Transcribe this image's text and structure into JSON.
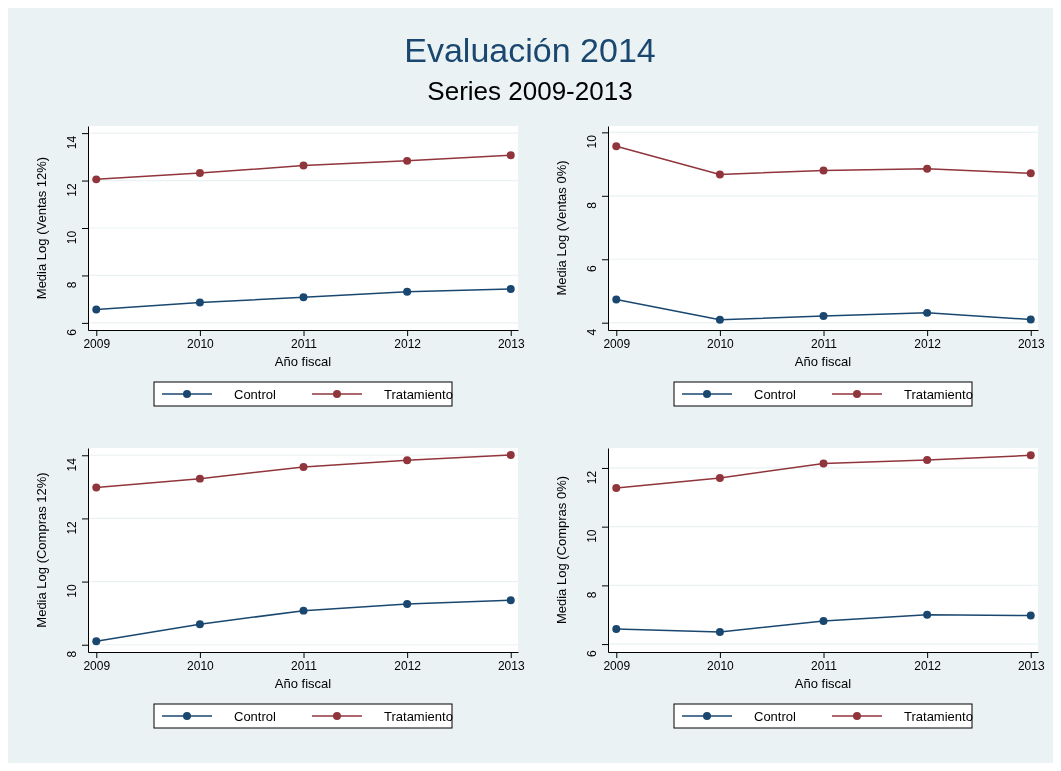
{
  "chart_data": [
    {
      "type": "line",
      "title": "Evaluación 2014",
      "subtitle": "Series 2009-2013",
      "xlabel": "Año fiscal",
      "ylabel": "Media Log (Ventas 12%)",
      "x": [
        2009,
        2010,
        2011,
        2012,
        2013
      ],
      "xlim": [
        2008.92,
        2013.07
      ],
      "xticks": [
        2009,
        2010,
        2011,
        2012,
        2013
      ],
      "ylim": [
        5.7,
        14.3
      ],
      "yticks": [
        6,
        8,
        10,
        12,
        14
      ],
      "grid": "y",
      "legend": "bottom",
      "marker": "circle",
      "series": [
        {
          "name": "Control",
          "color": "#1a476f",
          "values": [
            6.56,
            6.86,
            7.08,
            7.31,
            7.43
          ]
        },
        {
          "name": "Tratamiento",
          "color": "#90353b",
          "values": [
            12.05,
            12.32,
            12.63,
            12.83,
            13.07
          ]
        }
      ]
    },
    {
      "type": "line",
      "xlabel": "Año fiscal",
      "ylabel": "Media Log (Ventas 0%)",
      "x": [
        2009,
        2010,
        2011,
        2012,
        2013
      ],
      "xlim": [
        2008.92,
        2013.07
      ],
      "xticks": [
        2009,
        2010,
        2011,
        2012,
        2013
      ],
      "ylim": [
        3.77,
        10.2
      ],
      "yticks": [
        4,
        6,
        8,
        10
      ],
      "grid": "y",
      "legend": "bottom",
      "marker": "circle",
      "series": [
        {
          "name": "Control",
          "color": "#1a476f",
          "values": [
            4.73,
            4.09,
            4.21,
            4.31,
            4.1
          ]
        },
        {
          "name": "Tratamiento",
          "color": "#90353b",
          "values": [
            9.56,
            8.67,
            8.8,
            8.85,
            8.71
          ]
        }
      ]
    },
    {
      "type": "line",
      "xlabel": "Año fiscal",
      "ylabel": "Media Log (Compras 12%)",
      "x": [
        2009,
        2010,
        2011,
        2012,
        2013
      ],
      "xlim": [
        2008.92,
        2013.07
      ],
      "xticks": [
        2009,
        2010,
        2011,
        2012,
        2013
      ],
      "ylim": [
        7.77,
        14.23
      ],
      "yticks": [
        8,
        10,
        12,
        14
      ],
      "grid": "y",
      "legend": "bottom",
      "marker": "circle",
      "series": [
        {
          "name": "Control",
          "color": "#1a476f",
          "values": [
            8.11,
            8.65,
            9.08,
            9.29,
            9.41
          ]
        },
        {
          "name": "Tratamiento",
          "color": "#90353b",
          "values": [
            12.98,
            13.26,
            13.63,
            13.84,
            14.01
          ]
        }
      ]
    },
    {
      "type": "line",
      "xlabel": "Año fiscal",
      "ylabel": "Media Log (Compras 0%)",
      "x": [
        2009,
        2010,
        2011,
        2012,
        2013
      ],
      "xlim": [
        2008.92,
        2013.07
      ],
      "xticks": [
        2009,
        2010,
        2011,
        2012,
        2013
      ],
      "ylim": [
        5.73,
        12.68
      ],
      "yticks": [
        6,
        8,
        10,
        12
      ],
      "grid": "y",
      "legend": "bottom",
      "marker": "circle",
      "series": [
        {
          "name": "Control",
          "color": "#1a476f",
          "values": [
            6.51,
            6.41,
            6.79,
            7.0,
            6.97
          ]
        },
        {
          "name": "Tratamiento",
          "color": "#90353b",
          "values": [
            11.32,
            11.66,
            12.15,
            12.27,
            12.43
          ]
        }
      ]
    }
  ]
}
